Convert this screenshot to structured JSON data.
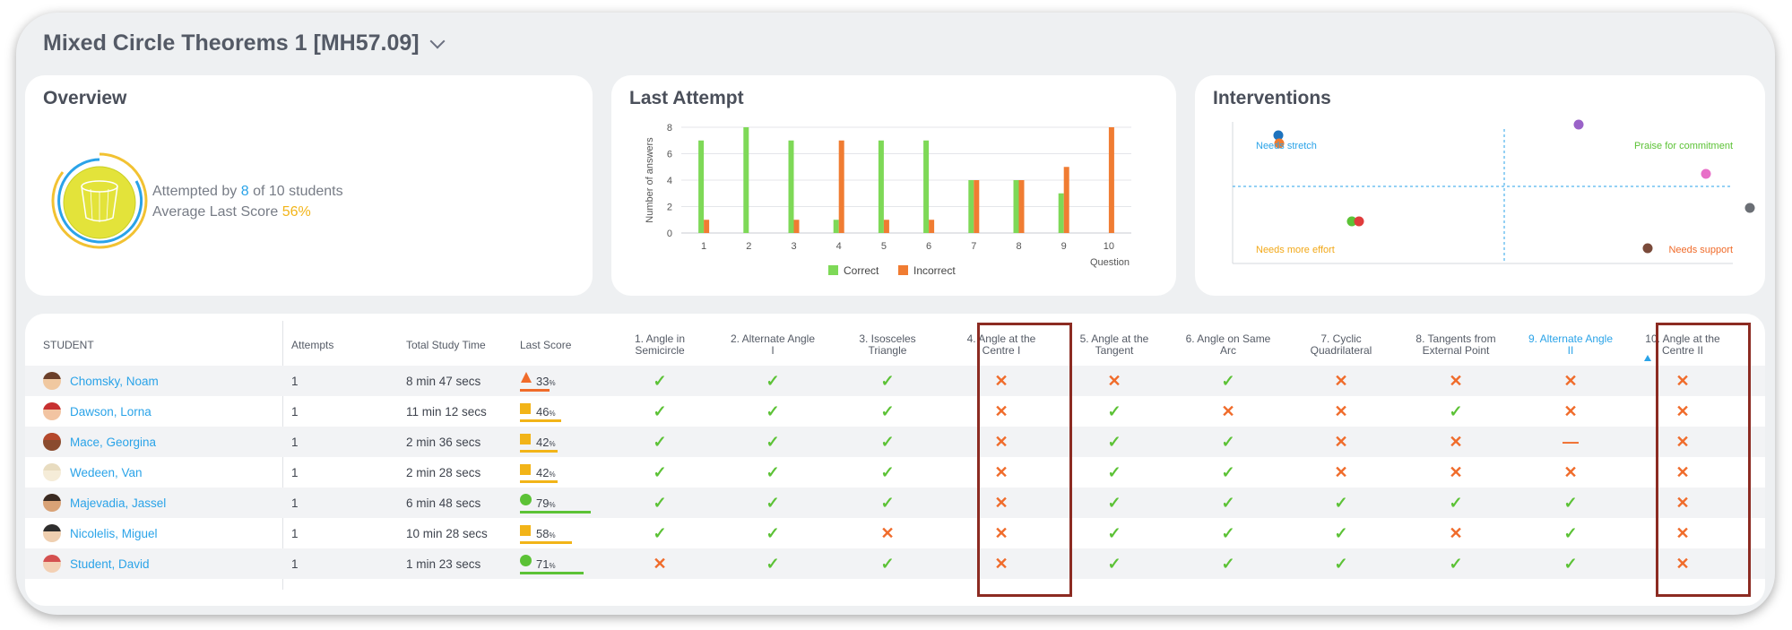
{
  "header": {
    "title": "Mixed Circle Theorems 1 [MH57.09]"
  },
  "overview": {
    "title": "Overview",
    "attempted_prefix": "Attempted by",
    "attempted_count": "8",
    "attempted_suffix": "of 10 students",
    "avg_label": "Average Last Score",
    "avg_value": "56%"
  },
  "last_attempt": {
    "title": "Last Attempt",
    "legend_correct": "Correct",
    "legend_incorrect": "Incorrect"
  },
  "chart_data": {
    "type": "bar",
    "categories": [
      "1",
      "2",
      "3",
      "4",
      "5",
      "6",
      "7",
      "8",
      "9",
      "10"
    ],
    "series": [
      {
        "name": "Correct",
        "color": "#7ed957",
        "values": [
          7,
          8,
          7,
          1,
          7,
          7,
          4,
          4,
          3,
          0
        ]
      },
      {
        "name": "Incorrect",
        "color": "#f07c32",
        "values": [
          1,
          0,
          1,
          7,
          1,
          1,
          4,
          4,
          5,
          8
        ]
      }
    ],
    "ylim": [
      0,
      8
    ],
    "yticks": [
      0,
      2,
      4,
      6,
      8
    ],
    "xlabel": "Question",
    "ylabel": "Number of answers",
    "grid": true,
    "legend": "bottom"
  },
  "interventions": {
    "title": "Interventions",
    "labels": {
      "top_left": "Needs stretch",
      "top_right": "Praise for commitment",
      "bottom_left": "Needs more effort",
      "bottom_right": "Needs support"
    },
    "colors": {
      "top_left": "#2aa3e8",
      "top_right": "#5cc236",
      "bottom_left": "#f2a818",
      "bottom_right": "#f06b2a"
    }
  },
  "table": {
    "columns": {
      "student": "STUDENT",
      "attempts": "Attempts",
      "study_time": "Total Study Time",
      "last_score": "Last Score"
    },
    "questions": [
      [
        "1. Angle in",
        "Semicircle"
      ],
      [
        "2. Alternate Angle",
        "I"
      ],
      [
        "3. Isosceles",
        "Triangle"
      ],
      [
        "4. Angle at the",
        "Centre I"
      ],
      [
        "5. Angle at the",
        "Tangent"
      ],
      [
        "6. Angle on Same",
        "Arc"
      ],
      [
        "7. Cyclic",
        "Quadrilateral"
      ],
      [
        "8. Tangents from",
        "External Point"
      ],
      [
        "9. Alternate Angle",
        "II"
      ],
      [
        "10. Angle at the",
        "Centre II"
      ]
    ],
    "rows": [
      {
        "name": "Chomsky, Noam",
        "attempts": "1",
        "time": "8 min 47 secs",
        "score": "33",
        "score_pct": 33,
        "score_shape": "triangle",
        "score_color": "#f06b2a",
        "results": [
          "ok",
          "ok",
          "ok",
          "no",
          "no",
          "ok",
          "no",
          "no",
          "no",
          "no"
        ]
      },
      {
        "name": "Dawson, Lorna",
        "attempts": "1",
        "time": "11 min 12 secs",
        "score": "46",
        "score_pct": 46,
        "score_shape": "square",
        "score_color": "#f2b418",
        "results": [
          "ok",
          "ok",
          "ok",
          "no",
          "ok",
          "no",
          "no",
          "ok",
          "no",
          "no"
        ]
      },
      {
        "name": "Mace, Georgina",
        "attempts": "1",
        "time": "2 min 36 secs",
        "score": "42",
        "score_pct": 42,
        "score_shape": "square",
        "score_color": "#f2b418",
        "results": [
          "ok",
          "ok",
          "ok",
          "no",
          "ok",
          "ok",
          "no",
          "no",
          "dash",
          "no"
        ]
      },
      {
        "name": "Wedeen, Van",
        "attempts": "1",
        "time": "2 min 28 secs",
        "score": "42",
        "score_pct": 42,
        "score_shape": "square",
        "score_color": "#f2b418",
        "results": [
          "ok",
          "ok",
          "ok",
          "no",
          "ok",
          "ok",
          "no",
          "no",
          "no",
          "no"
        ]
      },
      {
        "name": "Majevadia, Jassel",
        "attempts": "1",
        "time": "6 min 48 secs",
        "score": "79",
        "score_pct": 79,
        "score_shape": "circle",
        "score_color": "#5cc236",
        "results": [
          "ok",
          "ok",
          "ok",
          "no",
          "ok",
          "ok",
          "ok",
          "ok",
          "ok",
          "no"
        ]
      },
      {
        "name": "Nicolelis, Miguel",
        "attempts": "1",
        "time": "10 min 28 secs",
        "score": "58",
        "score_pct": 58,
        "score_shape": "square",
        "score_color": "#f2b418",
        "results": [
          "ok",
          "ok",
          "no",
          "no",
          "ok",
          "ok",
          "ok",
          "no",
          "ok",
          "no"
        ]
      },
      {
        "name": "Student, David",
        "attempts": "1",
        "time": "1 min 23 secs",
        "score": "71",
        "score_pct": 71,
        "score_shape": "circle",
        "score_color": "#5cc236",
        "results": [
          "no",
          "ok",
          "ok",
          "no",
          "ok",
          "ok",
          "ok",
          "ok",
          "ok",
          "no"
        ]
      }
    ]
  }
}
